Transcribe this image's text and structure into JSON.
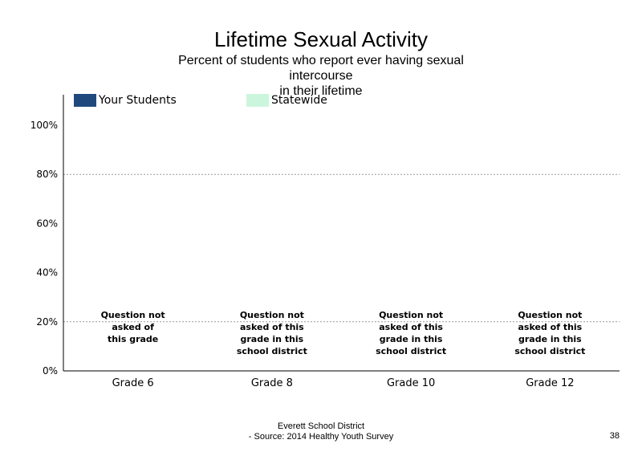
{
  "chart_data": {
    "type": "bar",
    "title": "Lifetime Sexual Activity",
    "subtitle_lines": [
      "Percent of students  who report ever having sexual",
      "intercourse",
      "in their lifetime"
    ],
    "categories": [
      "Grade 6",
      "Grade 8",
      "Grade 10",
      "Grade 12"
    ],
    "series": [
      {
        "name": "Your Students",
        "color": "#1f497d",
        "values": [
          null,
          null,
          null,
          null
        ]
      },
      {
        "name": "Statewide",
        "color": "#ccf5dd",
        "values": [
          null,
          null,
          null,
          null
        ]
      }
    ],
    "y_ticks": [
      "0%",
      "20%",
      "40%",
      "60%",
      "80%",
      "100%"
    ],
    "y_tick_values": [
      0,
      20,
      40,
      60,
      80,
      100
    ],
    "ylim": [
      0,
      110
    ],
    "gridlines": [
      20,
      80
    ],
    "notes": [
      [
        "Question not",
        "asked of",
        "this grade"
      ],
      [
        "Question not",
        "asked of this",
        "grade in this",
        "school district"
      ],
      [
        "Question not",
        "asked of this",
        "grade in this",
        "school district"
      ],
      [
        "Question not",
        "asked of this",
        "grade in this",
        "school district"
      ]
    ],
    "legend_position": "top-left"
  },
  "footer": {
    "line1": "Everett School District",
    "line2": "- Source: 2014 Healthy  Youth Survey",
    "page_number": "38"
  }
}
